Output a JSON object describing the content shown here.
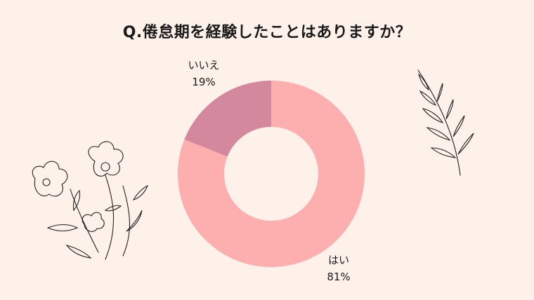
{
  "title": "Q.倦怠期を経験したことはありますか？",
  "chart_data": {
    "type": "pie",
    "donut": true,
    "title": "Q.倦怠期を経験したことはありますか？",
    "categories": [
      "はい",
      "いいえ"
    ],
    "values": [
      81,
      19
    ],
    "value_labels": [
      "81%",
      "19%"
    ],
    "colors": [
      "#fdaeae",
      "#d4889d"
    ]
  }
}
